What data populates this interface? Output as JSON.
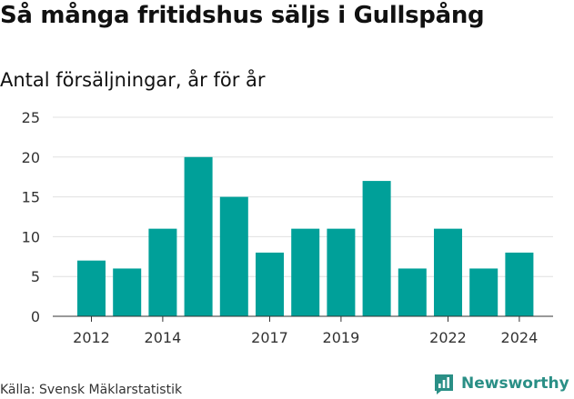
{
  "title": "Så många fritidshus säljs i Gullspång",
  "subtitle": "Antal försäljningar, år för år",
  "source": "Källa: Svensk Mäklarstatistik",
  "brand": "Newsworthy",
  "colors": {
    "bar": "#00a099",
    "grid": "#e0e0e0",
    "axis": "#333333",
    "brand": "#2a8f86"
  },
  "chart_data": {
    "type": "bar",
    "x": [
      2012,
      2013,
      2014,
      2015,
      2016,
      2017,
      2018,
      2019,
      2020,
      2021,
      2022,
      2023,
      2024
    ],
    "values": [
      7,
      6,
      11,
      20,
      15,
      8,
      11,
      11,
      17,
      6,
      11,
      6,
      8
    ],
    "xticks": [
      "2012",
      "2014",
      "2017",
      "2019",
      "2022",
      "2024"
    ],
    "yticks": [
      0,
      5,
      10,
      15,
      20,
      25
    ],
    "ylim": [
      0,
      25
    ],
    "grid": true
  }
}
